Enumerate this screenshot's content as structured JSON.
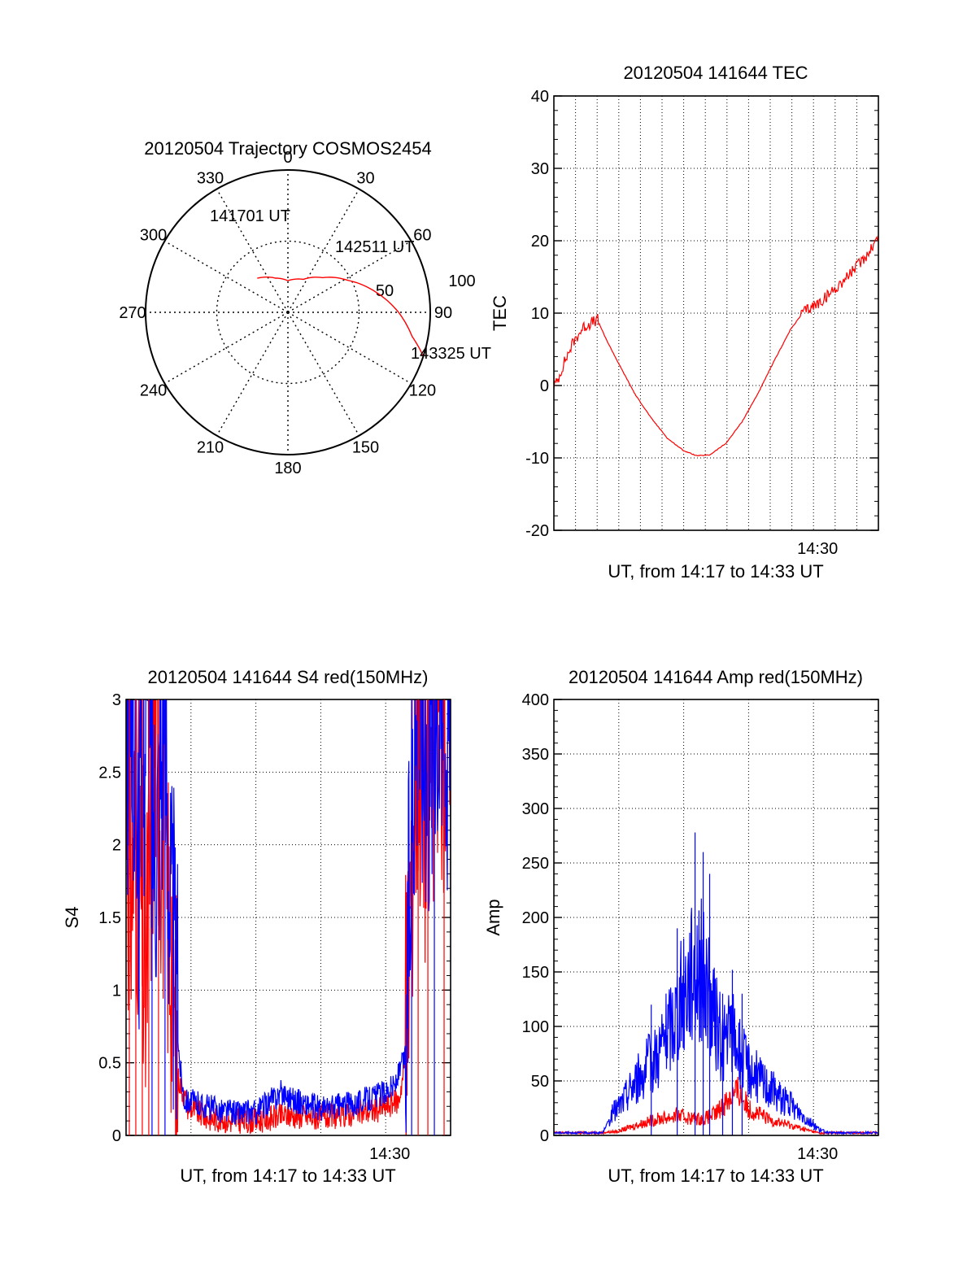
{
  "colors": {
    "red": "#ff0000",
    "blue": "#0000ff",
    "axis": "#000000",
    "grid": "#000000"
  },
  "chart_data": [
    {
      "id": "trajectory",
      "type": "polar",
      "title": "20120504 Trajectory COSMOS2454",
      "azimuth_labels": [
        "0",
        "30",
        "60",
        "90",
        "120",
        "150",
        "180",
        "210",
        "240",
        "270",
        "300",
        "330"
      ],
      "elevation_labels": [
        "50",
        "100"
      ],
      "annotations": [
        "141701 UT",
        "142511 UT",
        "143325 UT"
      ],
      "grid": true,
      "series": [
        {
          "color": "#ff0000",
          "points": [
            {
              "az": 318,
              "el": 61
            },
            {
              "az": 340,
              "el": 67
            },
            {
              "az": 0,
              "el": 70
            },
            {
              "az": 25,
              "el": 67
            },
            {
              "az": 45,
              "el": 59
            },
            {
              "az": 62,
              "el": 47
            },
            {
              "az": 77,
              "el": 33
            },
            {
              "az": 90,
              "el": 20
            },
            {
              "az": 101,
              "el": 10
            },
            {
              "az": 108,
              "el": 0
            }
          ]
        }
      ]
    },
    {
      "id": "tec",
      "type": "line",
      "title": "20120504 141644 TEC",
      "xlabel": "UT, from 14:17 to 14:33 UT",
      "ylabel": "TEC",
      "ylim": [
        -20,
        40
      ],
      "yticks": [
        "-20",
        "-10",
        "0",
        "10",
        "20",
        "30",
        "40"
      ],
      "xtick_labels": [
        "14:30"
      ],
      "grid": true,
      "series": [
        {
          "color": "#ff0000",
          "points": [
            [
              0,
              0
            ],
            [
              0.01,
              0.5
            ],
            [
              0.03,
              3
            ],
            [
              0.06,
              6
            ],
            [
              0.09,
              8
            ],
            [
              0.12,
              8.8
            ],
            [
              0.135,
              9
            ],
            [
              0.16,
              6.5
            ],
            [
              0.2,
              3
            ],
            [
              0.25,
              -1.2
            ],
            [
              0.3,
              -4.5
            ],
            [
              0.35,
              -7.3
            ],
            [
              0.4,
              -9
            ],
            [
              0.44,
              -9.7
            ],
            [
              0.48,
              -9.6
            ],
            [
              0.53,
              -8
            ],
            [
              0.58,
              -5
            ],
            [
              0.63,
              -1
            ],
            [
              0.68,
              3.5
            ],
            [
              0.73,
              7.8
            ],
            [
              0.77,
              10.2
            ],
            [
              0.82,
              11.5
            ],
            [
              0.87,
              13.5
            ],
            [
              0.92,
              15.8
            ],
            [
              0.96,
              17.8
            ],
            [
              1.0,
              20.5
            ]
          ]
        }
      ]
    },
    {
      "id": "s4",
      "type": "line",
      "title": "20120504 141644 S4 red(150MHz)",
      "xlabel": "UT, from 14:17 to 14:33 UT",
      "ylabel": "S4",
      "ylim": [
        0,
        3
      ],
      "yticks": [
        "0",
        "0.5",
        "1",
        "1.5",
        "2",
        "2.5",
        "3"
      ],
      "xtick_labels": [
        "14:30"
      ],
      "grid": true,
      "series": [
        {
          "color": "#ff0000",
          "points": [
            [
              0,
              3
            ],
            [
              0.01,
              1.6
            ],
            [
              0.03,
              2.2
            ],
            [
              0.06,
              1.0
            ],
            [
              0.09,
              2.9
            ],
            [
              0.12,
              1.8
            ],
            [
              0.14,
              1.3
            ],
            [
              0.15,
              0.7
            ],
            [
              0.16,
              0.4
            ],
            [
              0.19,
              0.2
            ],
            [
              0.25,
              0.12
            ],
            [
              0.32,
              0.1
            ],
            [
              0.4,
              0.1
            ],
            [
              0.5,
              0.14
            ],
            [
              0.6,
              0.12
            ],
            [
              0.7,
              0.15
            ],
            [
              0.78,
              0.18
            ],
            [
              0.84,
              0.24
            ],
            [
              0.86,
              0.5
            ],
            [
              0.87,
              1.2
            ],
            [
              0.88,
              2.0
            ],
            [
              0.9,
              2.8
            ],
            [
              0.93,
              2.2
            ],
            [
              0.96,
              3
            ],
            [
              1.0,
              2.6
            ]
          ]
        },
        {
          "color": "#0000ff",
          "points": [
            [
              0,
              2.6
            ],
            [
              0.02,
              3
            ],
            [
              0.04,
              1.9
            ],
            [
              0.06,
              3
            ],
            [
              0.09,
              2.2
            ],
            [
              0.12,
              3
            ],
            [
              0.135,
              1.7
            ],
            [
              0.15,
              1.1
            ],
            [
              0.165,
              0.5
            ],
            [
              0.18,
              0.25
            ],
            [
              0.22,
              0.22
            ],
            [
              0.28,
              0.18
            ],
            [
              0.34,
              0.16
            ],
            [
              0.4,
              0.16
            ],
            [
              0.48,
              0.3
            ],
            [
              0.52,
              0.24
            ],
            [
              0.6,
              0.18
            ],
            [
              0.7,
              0.22
            ],
            [
              0.78,
              0.28
            ],
            [
              0.83,
              0.35
            ],
            [
              0.86,
              0.55
            ],
            [
              0.87,
              1.4
            ],
            [
              0.88,
              2.5
            ],
            [
              0.9,
              3
            ],
            [
              0.93,
              2.7
            ],
            [
              0.96,
              3
            ],
            [
              1.0,
              2.8
            ]
          ]
        }
      ]
    },
    {
      "id": "amp",
      "type": "line",
      "title": "20120504 141644 Amp red(150MHz)",
      "xlabel": "UT, from 14:17 to 14:33 UT",
      "ylabel": "Amp",
      "ylim": [
        0,
        400
      ],
      "yticks": [
        "0",
        "50",
        "100",
        "150",
        "200",
        "250",
        "300",
        "350",
        "400"
      ],
      "xtick_labels": [
        "14:30"
      ],
      "grid": true,
      "series": [
        {
          "color": "#ff0000",
          "points": [
            [
              0,
              2
            ],
            [
              0.15,
              2
            ],
            [
              0.2,
              4
            ],
            [
              0.26,
              10
            ],
            [
              0.32,
              15
            ],
            [
              0.38,
              18
            ],
            [
              0.42,
              16
            ],
            [
              0.46,
              15
            ],
            [
              0.5,
              20
            ],
            [
              0.54,
              35
            ],
            [
              0.57,
              40
            ],
            [
              0.6,
              25
            ],
            [
              0.66,
              15
            ],
            [
              0.72,
              10
            ],
            [
              0.78,
              5
            ],
            [
              0.82,
              2
            ],
            [
              1.0,
              2
            ]
          ]
        },
        {
          "color": "#0000ff",
          "points": [
            [
              0,
              2
            ],
            [
              0.15,
              2
            ],
            [
              0.18,
              20
            ],
            [
              0.21,
              30
            ],
            [
              0.24,
              45
            ],
            [
              0.28,
              60
            ],
            [
              0.32,
              75
            ],
            [
              0.36,
              100
            ],
            [
              0.4,
              130
            ],
            [
              0.43,
              155
            ],
            [
              0.46,
              150
            ],
            [
              0.49,
              110
            ],
            [
              0.52,
              85
            ],
            [
              0.55,
              95
            ],
            [
              0.58,
              70
            ],
            [
              0.62,
              55
            ],
            [
              0.66,
              45
            ],
            [
              0.7,
              35
            ],
            [
              0.74,
              25
            ],
            [
              0.78,
              15
            ],
            [
              0.82,
              5
            ],
            [
              0.85,
              2
            ],
            [
              1.0,
              2
            ]
          ],
          "spikes": [
            [
              0.3,
              120
            ],
            [
              0.38,
              190
            ],
            [
              0.435,
              278
            ],
            [
              0.46,
              260
            ],
            [
              0.48,
              240
            ],
            [
              0.55,
              152
            ],
            [
              0.58,
              130
            ],
            [
              0.52,
              130
            ]
          ]
        }
      ]
    }
  ]
}
